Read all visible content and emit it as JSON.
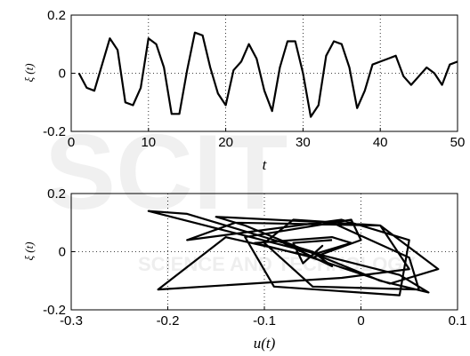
{
  "chart_data": [
    {
      "type": "line",
      "xlabel": "t",
      "ylabel": "ξ (t)",
      "xlim": [
        0,
        50
      ],
      "ylim": [
        -0.2,
        0.2
      ],
      "xticks": [
        "0",
        "10",
        "20",
        "30",
        "40",
        "50"
      ],
      "yticks": [
        "-0.2",
        "0",
        "0.2"
      ],
      "grid": true,
      "x": [
        1,
        2,
        3,
        4,
        5,
        6,
        7,
        8,
        9,
        10,
        11,
        12,
        13,
        14,
        15,
        16,
        17,
        18,
        19,
        20,
        21,
        22,
        23,
        24,
        25,
        26,
        27,
        28,
        29,
        30,
        31,
        32,
        33,
        34,
        35,
        36,
        37,
        38,
        39,
        40,
        41,
        42,
        43,
        44,
        45,
        46,
        47,
        48,
        49,
        50
      ],
      "y": [
        0.0,
        -0.05,
        -0.06,
        0.03,
        0.12,
        0.08,
        -0.1,
        -0.11,
        -0.05,
        0.12,
        0.1,
        0.02,
        -0.14,
        -0.14,
        0.01,
        0.14,
        0.13,
        0.02,
        -0.07,
        -0.11,
        0.01,
        0.04,
        0.1,
        0.05,
        -0.06,
        -0.13,
        0.02,
        0.11,
        0.11,
        0.0,
        -0.15,
        -0.11,
        0.06,
        0.11,
        0.1,
        0.02,
        -0.12,
        -0.06,
        0.03,
        0.04,
        0.05,
        0.06,
        -0.01,
        -0.04,
        -0.01,
        0.02,
        0.0,
        -0.04,
        0.03,
        0.04
      ]
    },
    {
      "type": "line",
      "xlabel": "u(t)",
      "ylabel": "ξ (t)",
      "xlim": [
        -0.3,
        0.1
      ],
      "ylim": [
        -0.2,
        0.2
      ],
      "xticks": [
        "-0.3",
        "-0.2",
        "-0.1",
        "0",
        "0.1"
      ],
      "yticks": [
        "-0.2",
        "0",
        "0.2"
      ],
      "grid": true,
      "x": [
        -0.08,
        -0.03,
        -0.05,
        -0.18,
        -0.22,
        0.04,
        0.07,
        0.02,
        -0.12,
        -0.15,
        -0.03,
        0.05,
        0.06,
        -0.05,
        -0.1,
        -0.07,
        0.02,
        0.08,
        0.03,
        -0.06,
        -0.14,
        -0.21,
        -0.02,
        0.05,
        0.02,
        -0.13,
        -0.18,
        -0.02,
        0.05,
        0.04,
        -0.09,
        -0.12,
        -0.01,
        0.0,
        -0.05,
        -0.11,
        -0.03,
        -0.01,
        -0.05,
        -0.04,
        -0.06,
        -0.07,
        -0.03
      ],
      "y": [
        0.03,
        -0.05,
        0.0,
        0.13,
        0.14,
        -0.08,
        -0.14,
        -0.1,
        0.09,
        0.12,
        0.1,
        -0.02,
        -0.13,
        -0.12,
        0.03,
        0.11,
        0.09,
        -0.06,
        -0.11,
        -0.01,
        0.05,
        -0.13,
        -0.09,
        -0.06,
        0.09,
        0.1,
        0.04,
        0.11,
        0.04,
        -0.15,
        -0.12,
        0.05,
        0.11,
        0.04,
        -0.02,
        0.03,
        0.05,
        0.03,
        -0.01,
        0.02,
        -0.04,
        0.03,
        0.04
      ]
    }
  ]
}
